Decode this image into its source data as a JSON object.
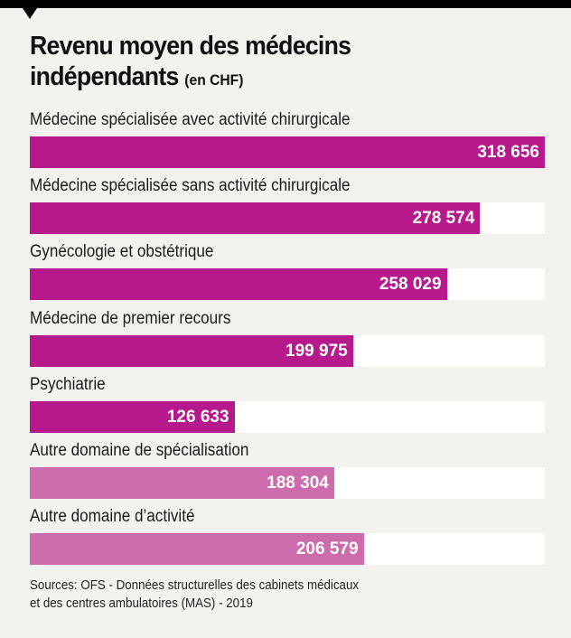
{
  "chart_data": {
    "type": "bar",
    "orientation": "horizontal",
    "title": "Revenu moyen des médecins indépendants",
    "title_line1": "Revenu moyen des médecins",
    "title_line2": "indépendants",
    "unit": "(en CHF)",
    "categories": [
      "Médecine spécialisée avec activité chirurgicale",
      "Médecine spécialisée sans activité chirurgicale",
      "Gynécologie et obstétrique",
      "Médecine de premier recours",
      "Psychiatrie",
      "Autre domaine de spécialisation",
      "Autre domaine d’activité"
    ],
    "values": [
      318656,
      278574,
      258029,
      199975,
      126633,
      188304,
      206579
    ],
    "value_labels": [
      "318 656",
      "278 574",
      "258 029",
      "199 975",
      "126 633",
      "188 304",
      "206 579"
    ],
    "bar_colors": [
      "#b5198b",
      "#b5198b",
      "#b5198b",
      "#b5198b",
      "#b5198b",
      "#cc6cad",
      "#cc6cad"
    ],
    "xlim": [
      0,
      318656
    ],
    "grid": false,
    "source": [
      "Sources: OFS - Données structurelles des cabinets médicaux",
      "et des centres ambulatoires (MAS) - 2019"
    ]
  },
  "colors": {
    "background": "#f2f2ee",
    "track": "#ffffff",
    "accent": "#b5198b",
    "accent_light": "#cc6cad"
  }
}
